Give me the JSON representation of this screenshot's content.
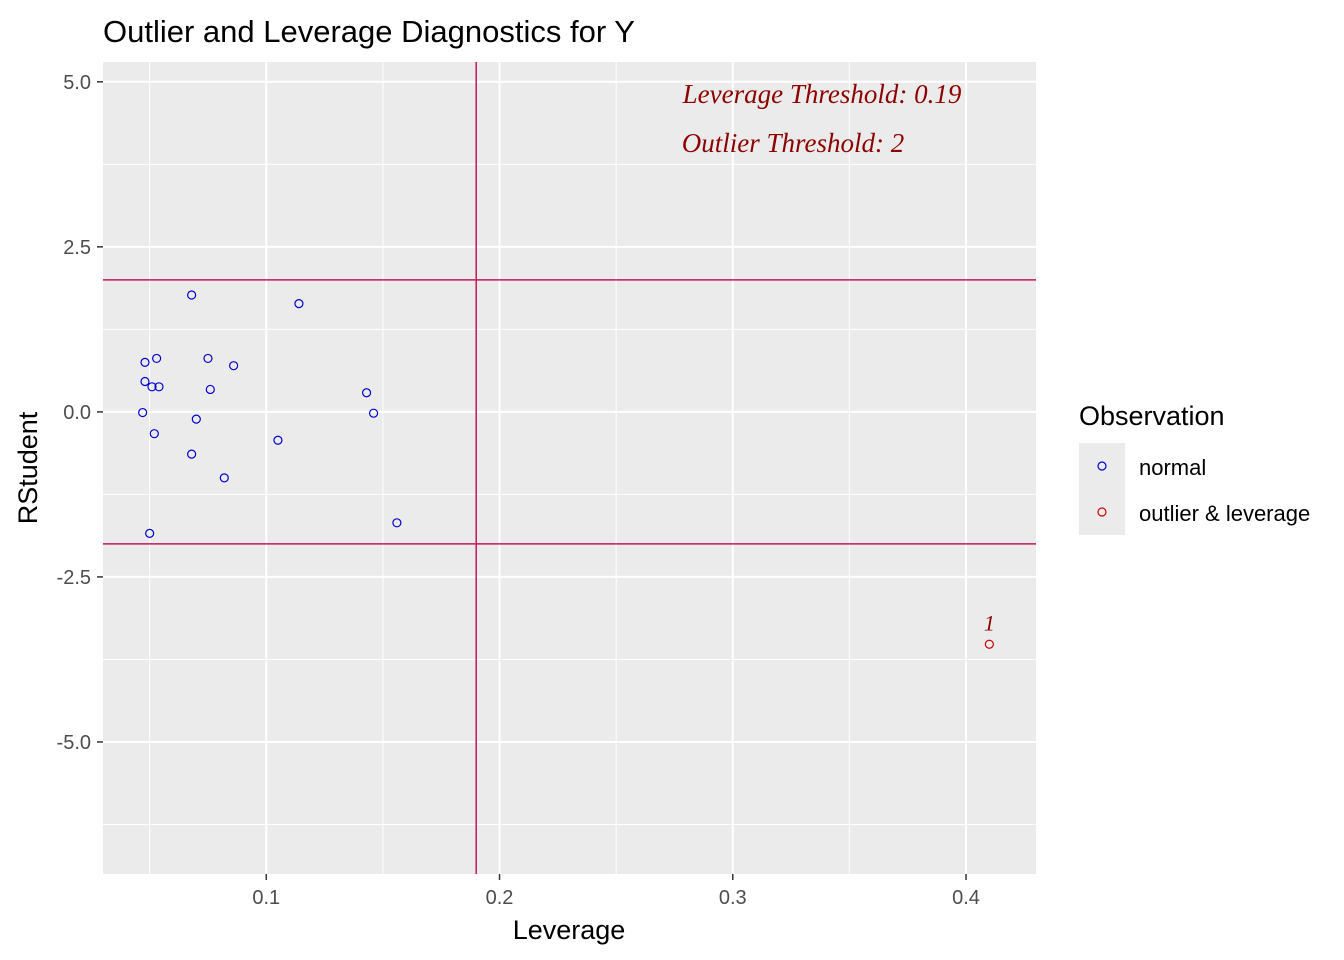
{
  "chart_data": {
    "type": "scatter",
    "title": "Outlier and Leverage Diagnostics for Y",
    "xlabel": "Leverage",
    "ylabel": "RStudent",
    "xlim": [
      0.03,
      0.43
    ],
    "ylim": [
      -7.0,
      5.3
    ],
    "x_ticks": [
      0.1,
      0.2,
      0.3,
      0.4
    ],
    "x_tick_labels": [
      "0.1",
      "0.2",
      "0.3",
      "0.4"
    ],
    "y_ticks": [
      5.0,
      2.5,
      0.0,
      -2.5,
      -5.0
    ],
    "y_tick_labels": [
      "5.0",
      "2.5",
      "0.0",
      "-2.5",
      "-5.0"
    ],
    "grid": true,
    "legend_position": "right",
    "legend": {
      "title": "Observation",
      "items": [
        {
          "label": "normal",
          "color": "#0000cc"
        },
        {
          "label": "outlier & leverage",
          "color": "#cc0000"
        }
      ]
    },
    "threshold_color": "#c2185b",
    "leverage_threshold": 0.19,
    "outlier_threshold": 2,
    "annotations": {
      "leverage_text": "Leverage Threshold: 0.19",
      "outlier_text": "Outlier Threshold: 2",
      "color": "#8b0000"
    },
    "series": [
      {
        "name": "normal",
        "color": "#0000cc",
        "points": [
          {
            "x": 0.068,
            "y": 1.77
          },
          {
            "x": 0.114,
            "y": 1.64
          },
          {
            "x": 0.048,
            "y": 0.75
          },
          {
            "x": 0.053,
            "y": 0.81
          },
          {
            "x": 0.075,
            "y": 0.81
          },
          {
            "x": 0.086,
            "y": 0.7
          },
          {
            "x": 0.048,
            "y": 0.46
          },
          {
            "x": 0.051,
            "y": 0.38
          },
          {
            "x": 0.054,
            "y": 0.38
          },
          {
            "x": 0.076,
            "y": 0.34
          },
          {
            "x": 0.143,
            "y": 0.29
          },
          {
            "x": 0.047,
            "y": -0.01
          },
          {
            "x": 0.146,
            "y": -0.02
          },
          {
            "x": 0.07,
            "y": -0.11
          },
          {
            "x": 0.052,
            "y": -0.33
          },
          {
            "x": 0.105,
            "y": -0.43
          },
          {
            "x": 0.068,
            "y": -0.64
          },
          {
            "x": 0.082,
            "y": -1.0
          },
          {
            "x": 0.156,
            "y": -1.68
          },
          {
            "x": 0.05,
            "y": -1.84
          }
        ]
      },
      {
        "name": "outlier & leverage",
        "color": "#cc0000",
        "points": [
          {
            "x": 0.41,
            "y": -3.52,
            "label": "1"
          }
        ]
      }
    ]
  }
}
